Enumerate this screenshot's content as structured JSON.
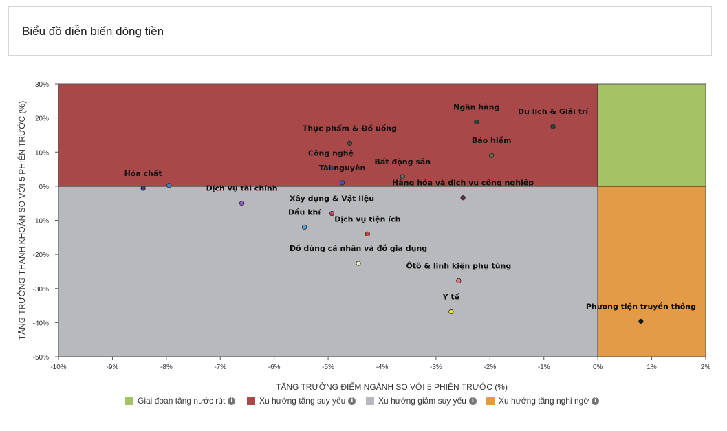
{
  "header": {
    "title": "Biểu đồ diễn biến dòng tiền"
  },
  "chart_data": {
    "type": "scatter",
    "xlabel": "TĂNG TRƯỞNG ĐIỂM NGÀNH SO VỚI 5 PHIÊN TRƯỚC (%)",
    "ylabel": "TĂNG TRƯỞNG THANH KHOẢN SO VỚI 5 PHIÊN TRƯỚC (%)",
    "xlim": [
      -10,
      2
    ],
    "ylim": [
      -50,
      30
    ],
    "x_ticks": [
      -10,
      -9,
      -8,
      -7,
      -6,
      -5,
      -4,
      -3,
      -2,
      -1,
      0,
      1,
      2
    ],
    "x_tick_labels": [
      "-10%",
      "-9%",
      "-8%",
      "-7%",
      "-6%",
      "-5%",
      "-4%",
      "-3%",
      "-2%",
      "-1%",
      "0%",
      "1%",
      "2%"
    ],
    "y_ticks": [
      30,
      20,
      10,
      0,
      -10,
      -20,
      -30,
      -40,
      -50
    ],
    "y_tick_labels": [
      "30%",
      "20%",
      "10%",
      "0%",
      "-10%",
      "-20%",
      "-30%",
      "-40%",
      "-50%"
    ],
    "quadrants": [
      {
        "name": "Giai đoạn tăng nước rút",
        "color": "#a5c264",
        "x": [
          0,
          2
        ],
        "y": [
          0,
          30
        ]
      },
      {
        "name": "Xu hướng tăng suy yếu",
        "color": "#a84848",
        "x": [
          -10,
          0
        ],
        "y": [
          0,
          30
        ]
      },
      {
        "name": "Xu hướng giảm suy yếu",
        "color": "#b8b9bc",
        "x": [
          -10,
          0
        ],
        "y": [
          -50,
          0
        ]
      },
      {
        "name": "Xu hướng tăng nghi ngờ",
        "color": "#e49b48",
        "x": [
          0,
          2
        ],
        "y": [
          -50,
          0
        ]
      }
    ],
    "points": [
      {
        "label": "Ngân hàng",
        "x": -2.25,
        "y": 18.8,
        "color": "#1e4b3a"
      },
      {
        "label": "Du lịch & Giải trí",
        "x": -0.83,
        "y": 17.5,
        "color": "#1e4b3a"
      },
      {
        "label": "Thực phẩm & Đồ uống",
        "x": -4.6,
        "y": 12.6,
        "color": "#4a4a4a"
      },
      {
        "label": "Bảo hiểm",
        "x": -1.97,
        "y": 9.0,
        "color": "#4f6f48"
      },
      {
        "label": "Công nghệ",
        "x": -4.95,
        "y": 5.3,
        "color": "#3a57a8"
      },
      {
        "label": "Bất động sản",
        "x": -3.62,
        "y": 2.8,
        "color": "#5a6e62"
      },
      {
        "label": "Tài nguyên",
        "x": -4.74,
        "y": 1.0,
        "color": "#3f52b5"
      },
      {
        "label": "Hóa chất",
        "x": -8.43,
        "y": -0.6,
        "color": "#3a3f8f"
      },
      {
        "label": "",
        "x": -7.95,
        "y": 0.2,
        "color": "#4d7fc4"
      },
      {
        "label": "Hàng hóa và dịch vụ công nghiệp",
        "x": -2.5,
        "y": -3.4,
        "color": "#6b2f4a"
      },
      {
        "label": "Dịch vụ tài chính",
        "x": -6.6,
        "y": -5.0,
        "color": "#9b59d0"
      },
      {
        "label": "Xây dựng & Vật liệu",
        "x": -4.93,
        "y": -8.0,
        "color": "#c8426a"
      },
      {
        "label": "Dầu khí",
        "x": -5.44,
        "y": -12.0,
        "color": "#4fa7e0"
      },
      {
        "label": "Dịch vụ tiện ích",
        "x": -4.27,
        "y": -14.0,
        "color": "#d1473a"
      },
      {
        "label": "Đồ dùng cá nhân và đồ gia dụng",
        "x": -4.44,
        "y": -22.6,
        "color": "#dff0b8"
      },
      {
        "label": "Ôtô & linh kiện phụ tùng",
        "x": -2.58,
        "y": -27.7,
        "color": "#e07b88"
      },
      {
        "label": "Y tế",
        "x": -2.72,
        "y": -36.8,
        "color": "#f0e82a"
      },
      {
        "label": "Phương tiện truyền thông",
        "x": 0.8,
        "y": -39.6,
        "color": "#111111"
      }
    ]
  },
  "legend": [
    {
      "label": "Giai đoạn tăng nước rút",
      "color": "#a5c264"
    },
    {
      "label": "Xu hướng tăng suy yếu",
      "color": "#a84848"
    },
    {
      "label": "Xu hướng giảm suy yếu",
      "color": "#b8b9bc"
    },
    {
      "label": "Xu hướng tăng nghi ngờ",
      "color": "#e49b48"
    }
  ],
  "info_icon": "info-icon"
}
